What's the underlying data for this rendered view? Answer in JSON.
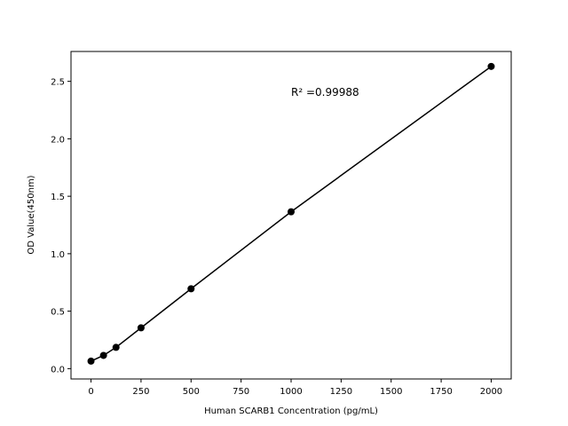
{
  "chart_data": {
    "type": "line",
    "x_label": "Human SCARB1 Concentration (pg/mL)",
    "y_label": "OD Value(450nm)",
    "annotation": "R² =0.99988",
    "x": [
      0,
      62.5,
      125,
      250,
      500,
      1000,
      2000
    ],
    "series": [
      {
        "color": "#000000",
        "values": [
          0.065,
          0.115,
          0.185,
          0.355,
          0.695,
          1.365,
          2.63
        ]
      }
    ],
    "xlim": [
      -100,
      2100
    ],
    "xticks": [
      0,
      250,
      500,
      750,
      1000,
      1250,
      1500,
      1750,
      2000
    ],
    "ylim": [
      -0.09,
      2.76
    ],
    "yticks": [
      {
        "value": 0,
        "label": "0.0"
      },
      0.5,
      {
        "value": 1,
        "label": "1.0"
      },
      1.5,
      {
        "value": 2,
        "label": "2.0"
      },
      2.5
    ],
    "grid": false
  }
}
